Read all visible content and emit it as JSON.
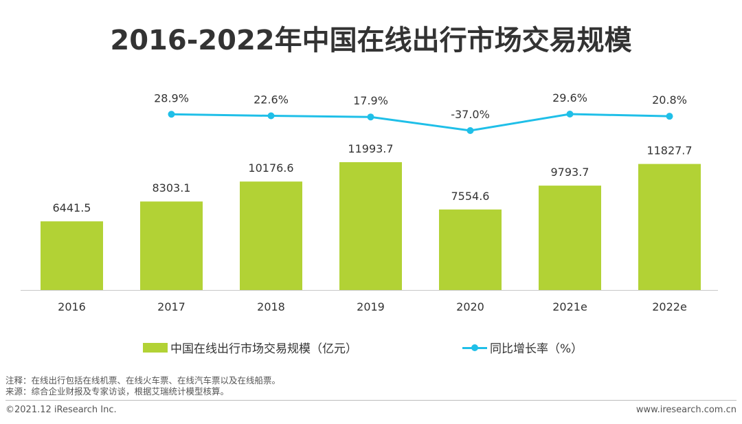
{
  "title": "2016-2022年中国在线出行市场交易规模",
  "chart_data": {
    "type": "bar",
    "categories": [
      "2016",
      "2017",
      "2018",
      "2019",
      "2020",
      "2021e",
      "2022e"
    ],
    "series": [
      {
        "name": "中国在线出行市场交易规模（亿元）",
        "type": "bar",
        "values": [
          6441.5,
          8303.1,
          10176.6,
          11993.7,
          7554.6,
          9793.7,
          11827.7
        ],
        "labels": [
          "6441.5",
          "8303.1",
          "10176.6",
          "11993.7",
          "7554.6",
          "9793.7",
          "11827.7"
        ],
        "color": "#b2d235"
      },
      {
        "name": "同比增长率（%）",
        "type": "line",
        "values": [
          null,
          28.9,
          22.6,
          17.9,
          -37.0,
          29.6,
          20.8
        ],
        "labels": [
          "",
          "28.9%",
          "22.6%",
          "17.9%",
          "-37.0%",
          "29.6%",
          "20.8%"
        ],
        "color": "#1fbfe8"
      }
    ],
    "legend_position": "bottom",
    "grid": false
  },
  "notes": {
    "line1": "注释：在线出行包括在线机票、在线火车票、在线汽车票以及在线船票。",
    "line2": "来源：综合企业财报及专家访谈，根据艾瑞统计模型核算。"
  },
  "footer": {
    "copyright": "©2021.12 iResearch Inc.",
    "website": "www.iresearch.com.cn"
  }
}
